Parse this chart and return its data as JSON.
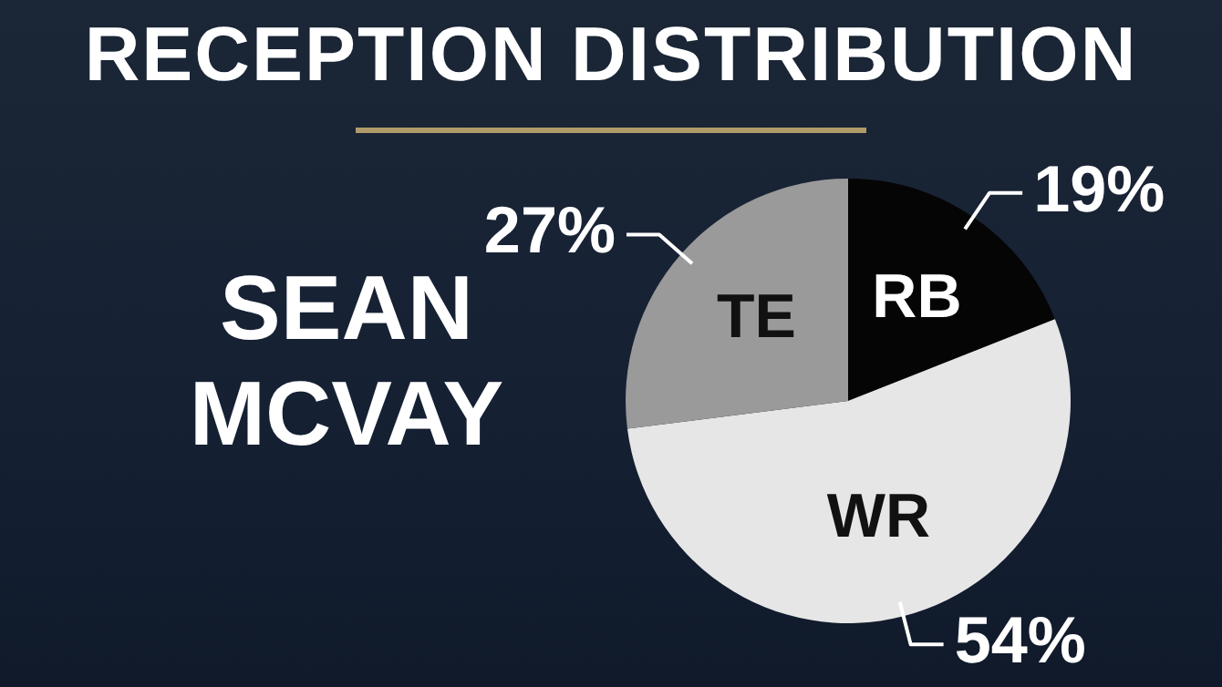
{
  "chart_data": {
    "type": "pie",
    "title": "RECEPTION DISTRIBUTION",
    "subtitle": "SEAN MCVAY",
    "categories": [
      "RB",
      "WR",
      "TE"
    ],
    "values": [
      19,
      54,
      27
    ],
    "colors": [
      "#050505",
      "#e6e6e6",
      "#9a9a9a"
    ],
    "value_labels": [
      "19%",
      "54%",
      "27%"
    ]
  }
}
